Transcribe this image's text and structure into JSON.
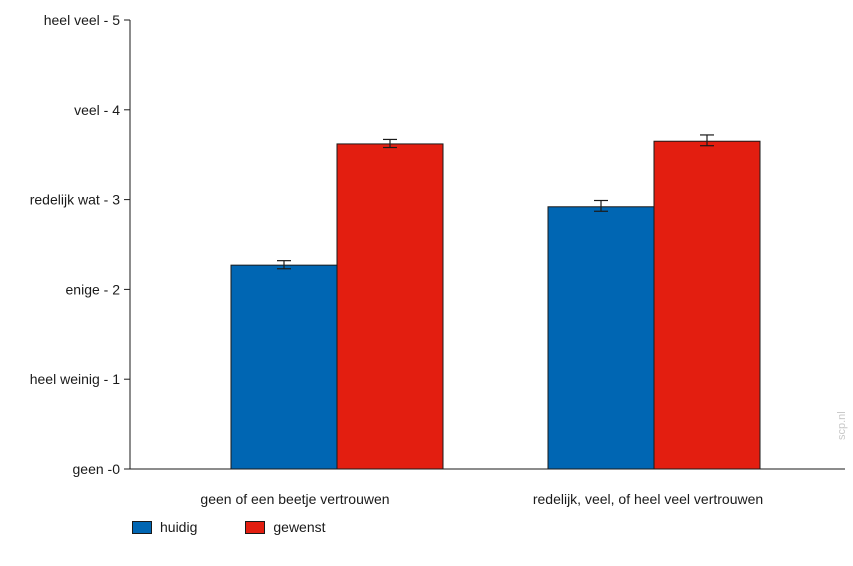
{
  "chart_data": {
    "type": "bar",
    "categories": [
      "geen of een beetje vertrouwen",
      "redelijk, veel, of heel veel vertrouwen"
    ],
    "series": [
      {
        "name": "huidig",
        "color": "#0066b3",
        "values": [
          2.27,
          2.92
        ],
        "error_low": [
          2.23,
          2.87
        ],
        "error_high": [
          2.32,
          2.99
        ]
      },
      {
        "name": "gewenst",
        "color": "#e31e10",
        "values": [
          3.62,
          3.65
        ],
        "error_low": [
          3.58,
          3.6
        ],
        "error_high": [
          3.67,
          3.72
        ]
      }
    ],
    "yticks": [
      {
        "value": 0,
        "label": "geen -0"
      },
      {
        "value": 1,
        "label": "heel weinig - 1"
      },
      {
        "value": 2,
        "label": "enige - 2"
      },
      {
        "value": 3,
        "label": "redelijk wat - 3"
      },
      {
        "value": 4,
        "label": "veel - 4"
      },
      {
        "value": 5,
        "label": "heel veel - 5"
      }
    ],
    "ylim": [
      0,
      5
    ],
    "legend_position": "bottom-left",
    "grid": false
  },
  "watermark": "scp.nl"
}
